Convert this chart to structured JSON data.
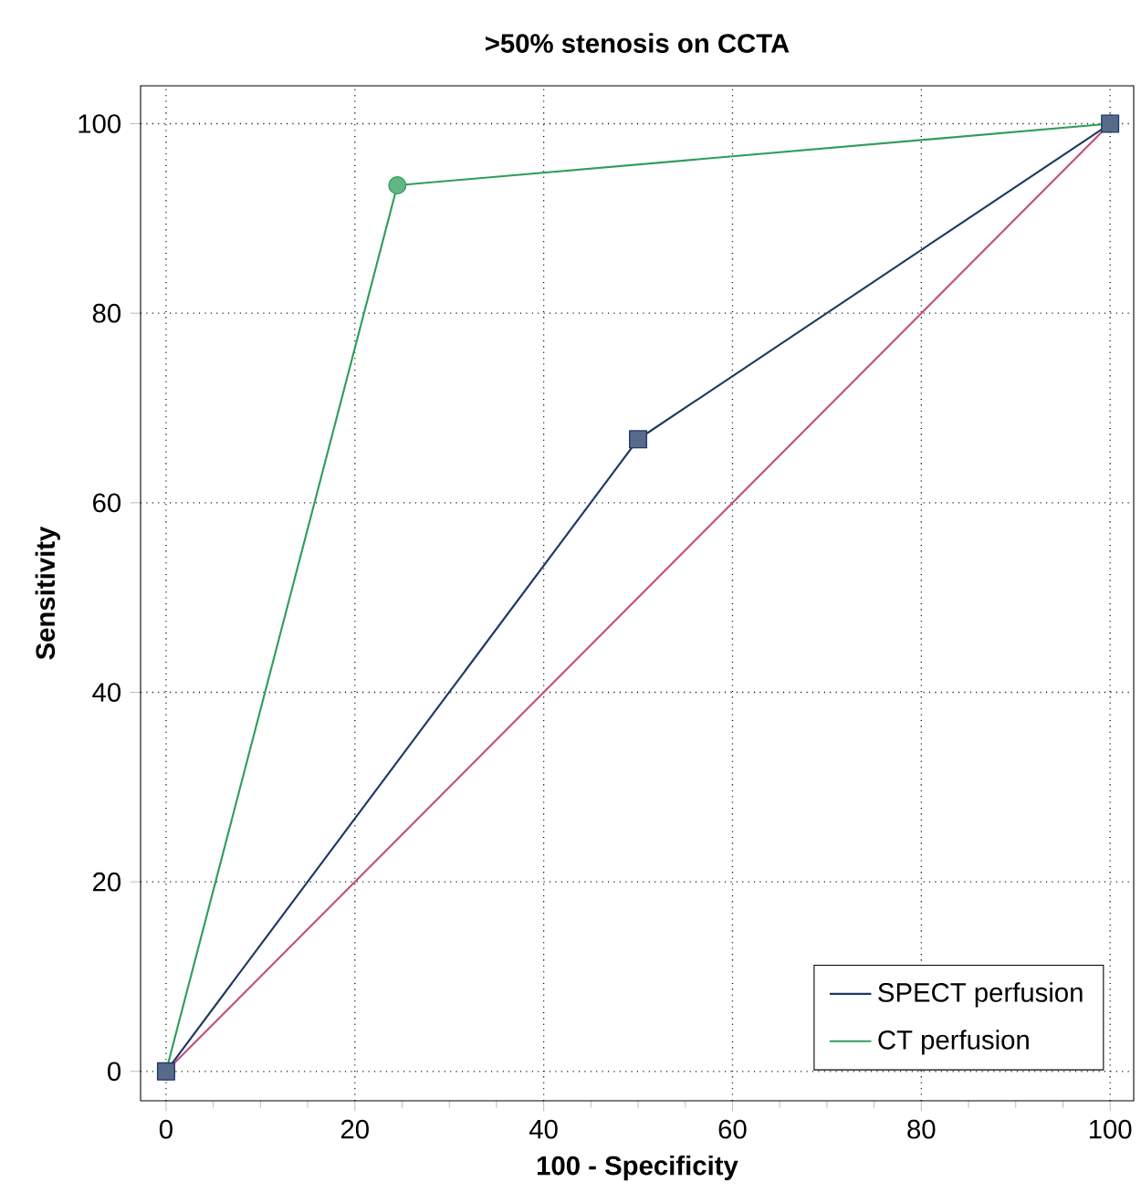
{
  "chart_data": {
    "type": "line",
    "title": "**>50% stenosis on CCTA**",
    "xlabel": "**100 - Specificity**",
    "ylabel": "**Sensitivity**",
    "xlim": [
      -2.7,
      102.5
    ],
    "ylim": [
      -3.1,
      104
    ],
    "xticks": [
      0,
      20,
      40,
      60,
      80,
      100
    ],
    "yticks": [
      0,
      20,
      40,
      60,
      80,
      100
    ],
    "grid": true,
    "legend": "bottom right",
    "series": [
      {
        "name": "SPECT perfusion",
        "color": "#1f3864",
        "x": [
          0,
          50,
          100
        ],
        "values": [
          0,
          66.7,
          100
        ],
        "marker": "square"
      },
      {
        "name": "CT perfusion",
        "color": "#2e9e5b",
        "x": [
          0,
          24.5,
          100
        ],
        "values": [
          0,
          93.5,
          100
        ],
        "marker": "circle"
      },
      {
        "color": "#c0507a",
        "x": [
          0,
          100
        ],
        "values": [
          0,
          100
        ],
        "marker": "none"
      }
    ]
  }
}
